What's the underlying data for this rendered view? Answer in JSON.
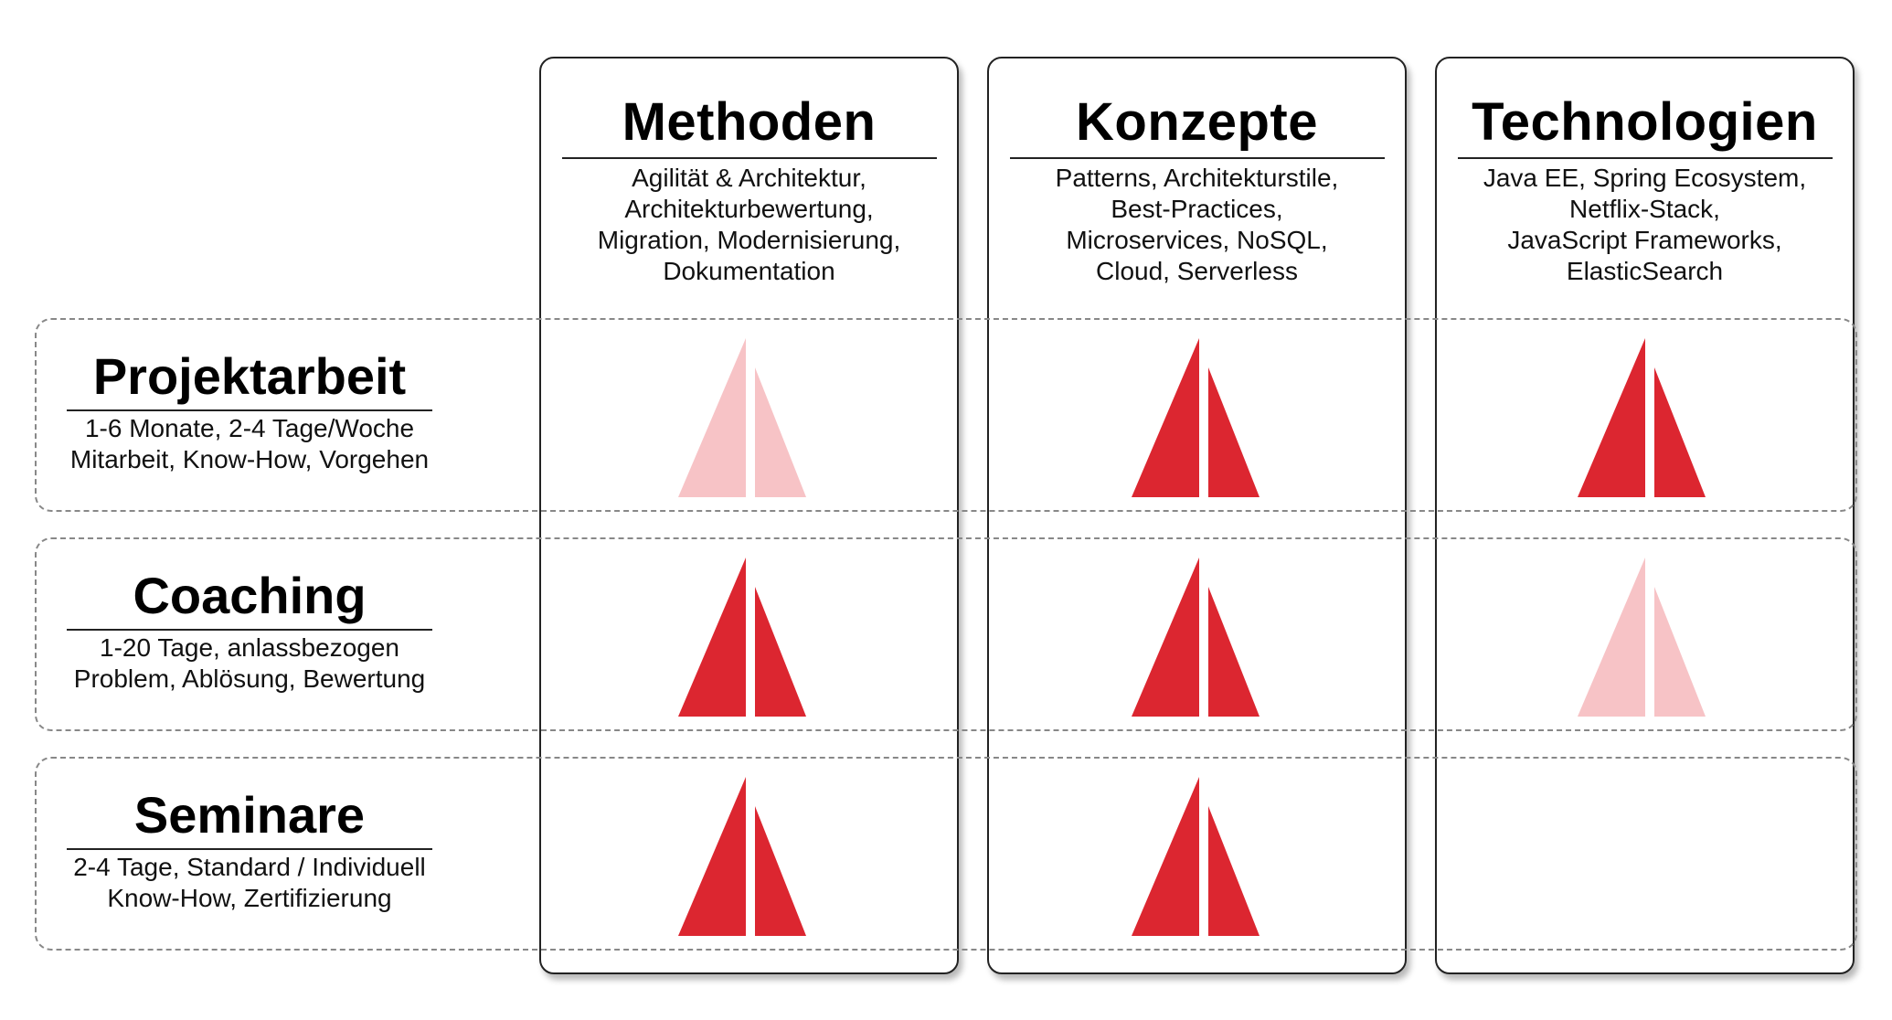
{
  "columns": [
    {
      "key": "methoden",
      "title": "Methoden",
      "description": "Agilität & Architektur,\nArchitekturbewertung,\nMigration, Modernisierung,\nDokumentation"
    },
    {
      "key": "konzepte",
      "title": "Konzepte",
      "description": "Patterns, Architekturstile,\nBest-Practices,\nMicroservices, NoSQL,\nCloud, Serverless"
    },
    {
      "key": "technologien",
      "title": "Technologien",
      "description": "Java EE, Spring Ecosystem,\nNetflix-Stack,\nJavaScript Frameworks,\nElasticSearch"
    }
  ],
  "rows": [
    {
      "key": "projektarbeit",
      "title": "Projektarbeit",
      "description": "1-6 Monate, 2-4 Tage/Woche\nMitarbeit, Know-How, Vorgehen"
    },
    {
      "key": "coaching",
      "title": "Coaching",
      "description": "1-20 Tage, anlassbezogen\nProblem, Ablösung, Bewertung"
    },
    {
      "key": "seminare",
      "title": "Seminare",
      "description": "2-4 Tage, Standard / Individuell\nKnow-How, Zertifizierung"
    }
  ],
  "matrix": [
    [
      "light",
      "strong",
      "strong"
    ],
    [
      "strong",
      "strong",
      "light"
    ],
    [
      "strong",
      "strong",
      "none"
    ]
  ],
  "colors": {
    "strong": "#dc2630",
    "light": "#f7c3c6",
    "border": "#222222",
    "dashed": "#888888"
  },
  "icons": {
    "sail": "sail-icon"
  }
}
